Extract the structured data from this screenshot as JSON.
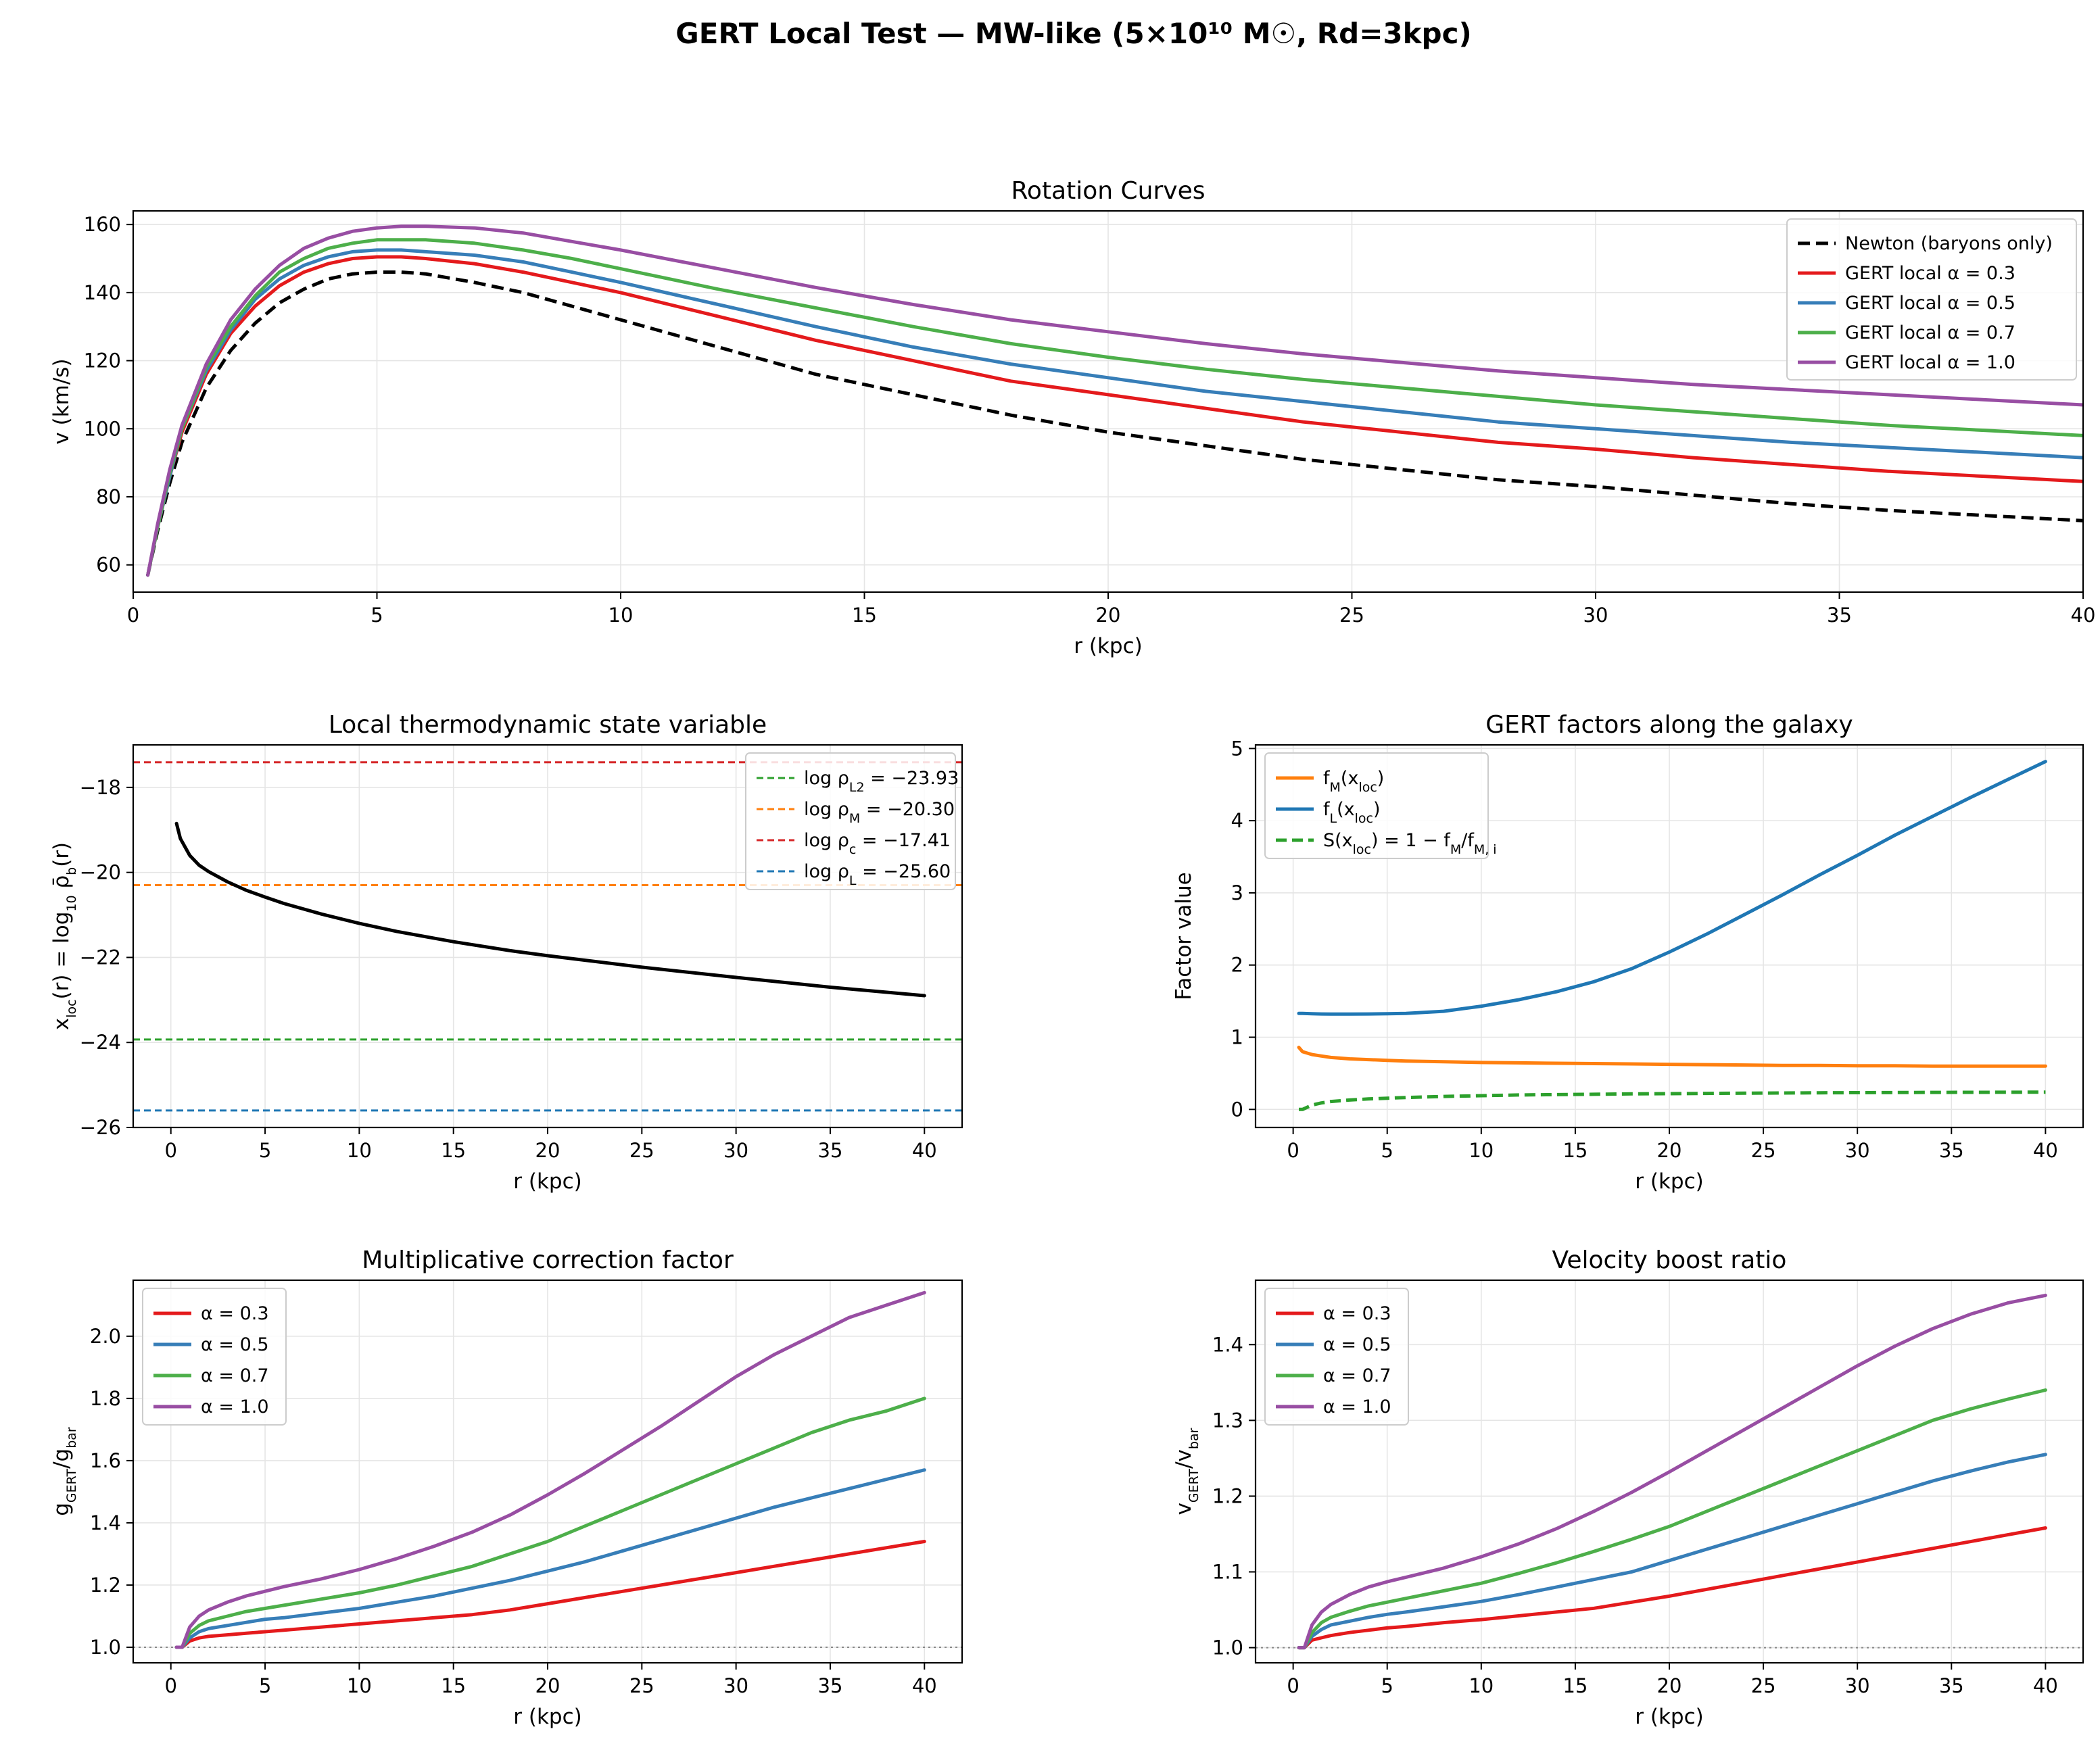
{
  "suptitle": "GERT Local Test — MW-like (5×10¹⁰ M☉, Rd=3kpc)",
  "colors": {
    "newton": "#000000",
    "a03": "#e41a1c",
    "a05": "#377eb8",
    "a07": "#4daf4a",
    "a10": "#984ea3",
    "xloc": "#000000",
    "fM": "#ff7f0e",
    "fL": "#1f77b4",
    "S": "#2ca02c",
    "rhoL2": "#2ca02c",
    "rhoM": "#ff7f0e",
    "rhoc": "#d62728",
    "rhoL": "#1f77b4",
    "grid": "#e5e5e5",
    "ref": "#888888"
  },
  "chart_data": [
    {
      "id": "rotation",
      "type": "line",
      "title": "Rotation Curves",
      "xlabel": "r (kpc)",
      "ylabel": "v (km/s)",
      "xlim": [
        0,
        40
      ],
      "ylim": [
        52,
        164
      ],
      "xticks": [
        0,
        5,
        10,
        15,
        20,
        25,
        30,
        35,
        40
      ],
      "yticks": [
        60,
        80,
        100,
        120,
        140,
        160
      ],
      "grid": true,
      "legend": "top-right",
      "x": [
        0.3,
        0.5,
        0.75,
        1,
        1.5,
        2,
        2.5,
        3,
        3.5,
        4,
        4.5,
        5,
        5.5,
        6,
        7,
        8,
        9,
        10,
        12,
        14,
        16,
        18,
        20,
        22,
        24,
        26,
        28,
        30,
        32,
        34,
        36,
        38,
        40
      ],
      "series": [
        {
          "key": "newton",
          "legend": "Newton (baryons only)",
          "color": "#000000",
          "dash": "18,9",
          "values": [
            57,
            70,
            84,
            96,
            112,
            123,
            131,
            137,
            141,
            144,
            145.5,
            146,
            146,
            145.5,
            143,
            140,
            136,
            132,
            124,
            116,
            110,
            104,
            99,
            95,
            91,
            88,
            85,
            83,
            80.5,
            78,
            76,
            74.5,
            73
          ]
        },
        {
          "key": "a03",
          "legend": "GERT local α = 0.3",
          "color": "#e41a1c",
          "values": [
            57,
            71,
            86,
            99,
            116,
            128,
            136,
            142,
            146,
            148.5,
            150,
            150.5,
            150.5,
            150,
            148.5,
            146,
            143,
            140,
            133,
            126,
            120,
            114,
            110,
            106,
            102,
            99,
            96,
            94,
            91.5,
            89.5,
            87.5,
            86,
            84.5
          ]
        },
        {
          "key": "a05",
          "legend": "GERT local α = 0.5",
          "color": "#377eb8",
          "values": [
            57,
            71,
            86,
            100,
            117,
            129,
            138,
            144,
            148,
            150.5,
            152,
            152.5,
            152.5,
            152,
            151,
            149,
            146,
            143,
            136.5,
            130,
            124,
            119,
            115,
            111,
            108,
            105,
            102,
            100,
            98,
            96,
            94.5,
            93,
            91.5
          ]
        },
        {
          "key": "a07",
          "legend": "GERT local α = 0.7",
          "color": "#4daf4a",
          "values": [
            57,
            71,
            87,
            100,
            118,
            130,
            139,
            146,
            150,
            153,
            154.5,
            155.5,
            155.5,
            155.5,
            154.5,
            152.5,
            150,
            147,
            141,
            135.5,
            130,
            125,
            121,
            117.5,
            114.5,
            112,
            109.5,
            107,
            105,
            103,
            101,
            99.5,
            98
          ]
        },
        {
          "key": "a10",
          "legend": "GERT local α = 1.0",
          "color": "#984ea3",
          "values": [
            57,
            72,
            88,
            101,
            119,
            132,
            141,
            148,
            153,
            156,
            158,
            159,
            159.5,
            159.5,
            159,
            157.5,
            155,
            152.5,
            147,
            141.5,
            136.5,
            132,
            128.5,
            125,
            122,
            119.5,
            117,
            115,
            113,
            111.5,
            110,
            108.5,
            107
          ]
        }
      ]
    },
    {
      "id": "xloc",
      "type": "line",
      "title": "Local thermodynamic state variable",
      "xlabel": "r (kpc)",
      "ylabel": "x_loc(r) = log₁₀ ρ̄_b(r)",
      "xlim": [
        -2,
        42
      ],
      "ylim": [
        -26,
        -17
      ],
      "xticks": [
        0,
        5,
        10,
        15,
        20,
        25,
        30,
        35,
        40
      ],
      "yticks": [
        -26,
        -24,
        -22,
        -20,
        -18
      ],
      "grid": true,
      "legend": "top-right",
      "x": [
        0.3,
        0.5,
        1,
        1.5,
        2,
        3,
        4,
        5,
        6,
        8,
        10,
        12,
        15,
        18,
        20,
        25,
        30,
        35,
        40
      ],
      "series": [
        {
          "key": "xloc",
          "color": "#000000",
          "values": [
            -18.85,
            -19.2,
            -19.6,
            -19.83,
            -19.98,
            -20.22,
            -20.42,
            -20.58,
            -20.73,
            -20.98,
            -21.2,
            -21.39,
            -21.63,
            -21.84,
            -21.96,
            -22.23,
            -22.47,
            -22.7,
            -22.9
          ]
        }
      ],
      "hlines": [
        {
          "key": "rhoL2",
          "legend_main": "log ρ",
          "legend_sub": "L2",
          "legend_rest": " = −23.93",
          "value": -23.93,
          "color": "#2ca02c"
        },
        {
          "key": "rhoM",
          "legend_main": "log ρ",
          "legend_sub": "M",
          "legend_rest": " = −20.30",
          "value": -20.3,
          "color": "#ff7f0e"
        },
        {
          "key": "rhoc",
          "legend_main": "log ρ",
          "legend_sub": "c",
          "legend_rest": " = −17.41",
          "value": -17.41,
          "color": "#d62728"
        },
        {
          "key": "rhoL",
          "legend_main": "log ρ",
          "legend_sub": "L",
          "legend_rest": " = −25.60",
          "value": -25.6,
          "color": "#1f77b4"
        }
      ]
    },
    {
      "id": "factors",
      "type": "line",
      "title": "GERT factors along the galaxy",
      "xlabel": "r (kpc)",
      "ylabel": "Factor value",
      "xlim": [
        -2,
        42
      ],
      "ylim": [
        -0.25,
        5.05
      ],
      "xticks": [
        0,
        5,
        10,
        15,
        20,
        25,
        30,
        35,
        40
      ],
      "yticks": [
        0,
        1,
        2,
        3,
        4,
        5
      ],
      "grid": true,
      "legend": "top-left",
      "x": [
        0.3,
        0.5,
        1,
        1.5,
        2,
        3,
        4,
        5,
        6,
        8,
        10,
        12,
        14,
        16,
        18,
        20,
        22,
        24,
        26,
        28,
        30,
        32,
        34,
        36,
        38,
        40
      ],
      "series": [
        {
          "key": "fM",
          "legend_main": "f",
          "legend_sub": "M",
          "legend_rest": "(x",
          "legend_sub2": "loc",
          "legend_end": ")",
          "color": "#ff7f0e",
          "values": [
            0.86,
            0.8,
            0.76,
            0.74,
            0.72,
            0.7,
            0.69,
            0.68,
            0.67,
            0.66,
            0.65,
            0.645,
            0.64,
            0.635,
            0.63,
            0.625,
            0.62,
            0.615,
            0.61,
            0.61,
            0.605,
            0.605,
            0.6,
            0.6,
            0.6,
            0.6
          ]
        },
        {
          "key": "fL",
          "legend_main": "f",
          "legend_sub": "L",
          "legend_rest": "(x",
          "legend_sub2": "loc",
          "legend_end": ")",
          "color": "#1f77b4",
          "values": [
            1.33,
            1.33,
            1.325,
            1.322,
            1.32,
            1.32,
            1.322,
            1.325,
            1.33,
            1.36,
            1.43,
            1.52,
            1.63,
            1.77,
            1.95,
            2.18,
            2.43,
            2.7,
            2.97,
            3.25,
            3.52,
            3.8,
            4.06,
            4.32,
            4.57,
            4.82
          ]
        },
        {
          "key": "S",
          "legend_main": "S(x",
          "legend_sub": "loc",
          "legend_rest": ") = 1 − f",
          "legend_sub2": "M",
          "legend_end": "/f",
          "legend_sub3": "M, i",
          "color": "#2ca02c",
          "dash": "16,8",
          "values": [
            0.0,
            0.0,
            0.06,
            0.09,
            0.11,
            0.13,
            0.145,
            0.155,
            0.165,
            0.18,
            0.19,
            0.2,
            0.205,
            0.21,
            0.215,
            0.218,
            0.222,
            0.225,
            0.228,
            0.23,
            0.232,
            0.234,
            0.236,
            0.237,
            0.238,
            0.24
          ]
        }
      ]
    },
    {
      "id": "gratio",
      "type": "line",
      "title": "Multiplicative correction factor",
      "xlabel": "r (kpc)",
      "ylabel": "g_GERT / g_bar",
      "xlim": [
        -2,
        42
      ],
      "ylim": [
        0.95,
        2.18
      ],
      "xticks": [
        0,
        5,
        10,
        15,
        20,
        25,
        30,
        35,
        40
      ],
      "yticks": [
        1.0,
        1.2,
        1.4,
        1.6,
        1.8,
        2.0
      ],
      "grid": true,
      "legend": "top-left",
      "refline": 1.0,
      "x": [
        0.3,
        0.6,
        1,
        1.5,
        2,
        3,
        4,
        5,
        6,
        8,
        10,
        12,
        14,
        16,
        18,
        20,
        22,
        24,
        26,
        28,
        30,
        32,
        34,
        36,
        38,
        40
      ],
      "series": [
        {
          "key": "a03",
          "legend": "α = 0.3",
          "color": "#e41a1c",
          "values": [
            1.0,
            1.0,
            1.02,
            1.03,
            1.035,
            1.04,
            1.045,
            1.05,
            1.055,
            1.065,
            1.075,
            1.085,
            1.095,
            1.105,
            1.12,
            1.14,
            1.16,
            1.18,
            1.2,
            1.22,
            1.24,
            1.26,
            1.28,
            1.3,
            1.32,
            1.34
          ]
        },
        {
          "key": "a05",
          "legend": "α = 0.5",
          "color": "#377eb8",
          "values": [
            1.0,
            1.0,
            1.03,
            1.05,
            1.06,
            1.07,
            1.08,
            1.09,
            1.095,
            1.11,
            1.125,
            1.145,
            1.165,
            1.19,
            1.215,
            1.245,
            1.275,
            1.31,
            1.345,
            1.38,
            1.415,
            1.45,
            1.48,
            1.51,
            1.54,
            1.57
          ]
        },
        {
          "key": "a07",
          "legend": "α = 0.7",
          "color": "#4daf4a",
          "values": [
            1.0,
            1.0,
            1.045,
            1.07,
            1.085,
            1.1,
            1.115,
            1.125,
            1.135,
            1.155,
            1.175,
            1.2,
            1.23,
            1.26,
            1.3,
            1.34,
            1.39,
            1.44,
            1.49,
            1.54,
            1.59,
            1.64,
            1.69,
            1.73,
            1.76,
            1.8
          ]
        },
        {
          "key": "a10",
          "legend": "α = 1.0",
          "color": "#984ea3",
          "values": [
            1.0,
            1.0,
            1.065,
            1.1,
            1.12,
            1.145,
            1.165,
            1.18,
            1.195,
            1.22,
            1.25,
            1.285,
            1.325,
            1.37,
            1.425,
            1.49,
            1.56,
            1.635,
            1.71,
            1.79,
            1.87,
            1.94,
            2.0,
            2.06,
            2.1,
            2.14
          ]
        }
      ]
    },
    {
      "id": "vratio",
      "type": "line",
      "title": "Velocity boost ratio",
      "xlabel": "r (kpc)",
      "ylabel": "v_GERT / v_bar",
      "xlim": [
        -2,
        42
      ],
      "ylim": [
        0.98,
        1.485
      ],
      "xticks": [
        0,
        5,
        10,
        15,
        20,
        25,
        30,
        35,
        40
      ],
      "yticks": [
        1.0,
        1.1,
        1.2,
        1.3,
        1.4
      ],
      "grid": true,
      "legend": "top-left",
      "refline": 1.0,
      "x": [
        0.3,
        0.6,
        1,
        1.5,
        2,
        3,
        4,
        5,
        6,
        8,
        10,
        12,
        14,
        16,
        18,
        20,
        22,
        24,
        26,
        28,
        30,
        32,
        34,
        36,
        38,
        40
      ],
      "series": [
        {
          "key": "a03",
          "legend": "α = 0.3",
          "color": "#e41a1c",
          "values": [
            1.0,
            1.0,
            1.01,
            1.013,
            1.016,
            1.02,
            1.023,
            1.026,
            1.028,
            1.033,
            1.037,
            1.042,
            1.047,
            1.052,
            1.06,
            1.068,
            1.077,
            1.086,
            1.095,
            1.104,
            1.113,
            1.122,
            1.131,
            1.14,
            1.149,
            1.158
          ]
        },
        {
          "key": "a05",
          "legend": "α = 0.5",
          "color": "#377eb8",
          "values": [
            1.0,
            1.0,
            1.015,
            1.024,
            1.03,
            1.035,
            1.04,
            1.044,
            1.047,
            1.054,
            1.061,
            1.07,
            1.08,
            1.09,
            1.1,
            1.115,
            1.13,
            1.145,
            1.16,
            1.175,
            1.19,
            1.205,
            1.22,
            1.233,
            1.245,
            1.255
          ]
        },
        {
          "key": "a07",
          "legend": "α = 0.7",
          "color": "#4daf4a",
          "values": [
            1.0,
            1.0,
            1.02,
            1.033,
            1.04,
            1.048,
            1.055,
            1.06,
            1.065,
            1.075,
            1.085,
            1.098,
            1.112,
            1.127,
            1.143,
            1.16,
            1.18,
            1.2,
            1.22,
            1.24,
            1.26,
            1.28,
            1.3,
            1.315,
            1.328,
            1.34
          ]
        },
        {
          "key": "a10",
          "legend": "α = 1.0",
          "color": "#984ea3",
          "values": [
            1.0,
            1.0,
            1.03,
            1.047,
            1.057,
            1.07,
            1.08,
            1.087,
            1.093,
            1.105,
            1.12,
            1.137,
            1.157,
            1.18,
            1.205,
            1.232,
            1.26,
            1.288,
            1.316,
            1.344,
            1.372,
            1.398,
            1.421,
            1.44,
            1.455,
            1.465
          ]
        }
      ]
    }
  ]
}
